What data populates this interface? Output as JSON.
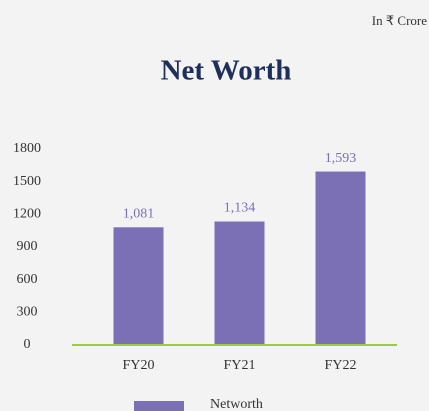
{
  "chart_data": {
    "type": "bar",
    "title": "Net Worth",
    "subtitle": "In ₹ Crore",
    "categories": [
      "FY20",
      "FY21",
      "FY22"
    ],
    "series": [
      {
        "name": "Networth",
        "color": "#7b70b5",
        "values": [
          1081,
          1134,
          1593
        ],
        "value_labels": [
          "1,081",
          "1,134",
          "1,593"
        ]
      }
    ],
    "ylim": [
      0,
      1800
    ],
    "yticks": [
      0,
      300,
      600,
      900,
      1200,
      1500,
      1800
    ],
    "axis_color": "#9ccc3c",
    "grid": false,
    "legend": "bottom"
  }
}
